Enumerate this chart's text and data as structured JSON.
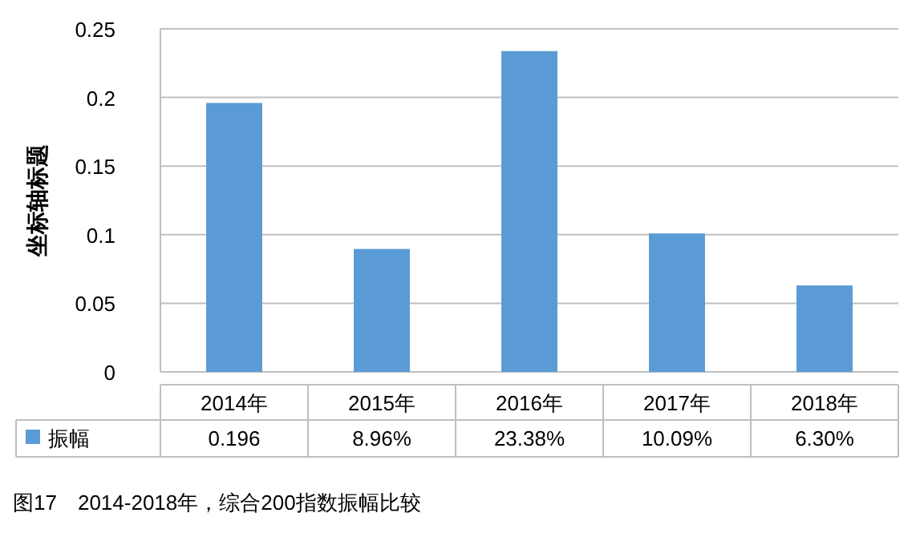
{
  "chart_data": {
    "type": "bar",
    "ylabel": "坐标轴标题",
    "categories": [
      "2014年",
      "2015年",
      "2016年",
      "2017年",
      "2018年"
    ],
    "series": [
      {
        "name": "振幅",
        "color": "#5b9bd5",
        "values": [
          0.196,
          0.0896,
          0.2338,
          0.1009,
          0.063
        ],
        "value_labels": [
          "0.196",
          "8.96%",
          "23.38%",
          "10.09%",
          "6.30%"
        ]
      }
    ],
    "ylim": [
      0,
      0.25
    ],
    "yticks": [
      0,
      0.05,
      0.1,
      0.15,
      0.2,
      0.25
    ],
    "grid": "y",
    "legend": "bottom",
    "annotations": [
      "图17　2014-2018年，综合200指数振幅比较"
    ]
  }
}
